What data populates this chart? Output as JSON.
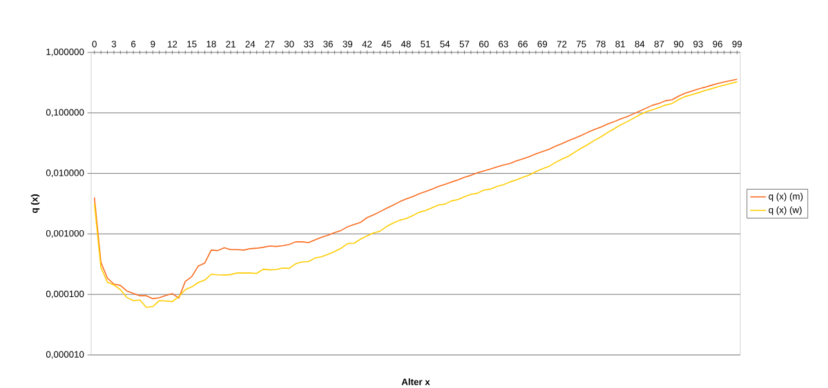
{
  "chart_data": {
    "type": "line",
    "xlabel": "Alter x",
    "ylabel": "q (x)",
    "log": "y",
    "grid": "y",
    "legend": "right",
    "marker": "none",
    "line_style": "solid",
    "x": [
      0,
      1,
      2,
      3,
      4,
      5,
      6,
      7,
      8,
      9,
      10,
      11,
      12,
      13,
      14,
      15,
      16,
      17,
      18,
      19,
      20,
      21,
      22,
      23,
      24,
      25,
      26,
      27,
      28,
      29,
      30,
      31,
      32,
      33,
      34,
      35,
      36,
      37,
      38,
      39,
      40,
      41,
      42,
      43,
      44,
      45,
      46,
      47,
      48,
      49,
      50,
      51,
      52,
      53,
      54,
      55,
      56,
      57,
      58,
      59,
      60,
      61,
      62,
      63,
      64,
      65,
      66,
      67,
      68,
      69,
      70,
      71,
      72,
      73,
      74,
      75,
      76,
      77,
      78,
      79,
      80,
      81,
      82,
      83,
      84,
      85,
      86,
      87,
      88,
      89,
      90,
      91,
      92,
      93,
      94,
      95,
      96,
      97,
      98,
      99
    ],
    "xlim": [
      -0.5,
      99.5
    ],
    "xticks": [
      0,
      {
        "value": 1,
        "label": null
      },
      {
        "value": 2,
        "label": null
      },
      3,
      {
        "value": 4,
        "label": null
      },
      {
        "value": 5,
        "label": null
      },
      6,
      {
        "value": 7,
        "label": null
      },
      {
        "value": 8,
        "label": null
      },
      9,
      {
        "value": 10,
        "label": null
      },
      {
        "value": 11,
        "label": null
      },
      12,
      {
        "value": 13,
        "label": null
      },
      {
        "value": 14,
        "label": null
      },
      15,
      {
        "value": 16,
        "label": null
      },
      {
        "value": 17,
        "label": null
      },
      18,
      {
        "value": 19,
        "label": null
      },
      {
        "value": 20,
        "label": null
      },
      21,
      {
        "value": 22,
        "label": null
      },
      {
        "value": 23,
        "label": null
      },
      24,
      {
        "value": 25,
        "label": null
      },
      {
        "value": 26,
        "label": null
      },
      27,
      {
        "value": 28,
        "label": null
      },
      {
        "value": 29,
        "label": null
      },
      30,
      {
        "value": 31,
        "label": null
      },
      {
        "value": 32,
        "label": null
      },
      33,
      {
        "value": 34,
        "label": null
      },
      {
        "value": 35,
        "label": null
      },
      36,
      {
        "value": 37,
        "label": null
      },
      {
        "value": 38,
        "label": null
      },
      39,
      {
        "value": 40,
        "label": null
      },
      {
        "value": 41,
        "label": null
      },
      42,
      {
        "value": 43,
        "label": null
      },
      {
        "value": 44,
        "label": null
      },
      45,
      {
        "value": 46,
        "label": null
      },
      {
        "value": 47,
        "label": null
      },
      48,
      {
        "value": 49,
        "label": null
      },
      {
        "value": 50,
        "label": null
      },
      51,
      {
        "value": 52,
        "label": null
      },
      {
        "value": 53,
        "label": null
      },
      54,
      {
        "value": 55,
        "label": null
      },
      {
        "value": 56,
        "label": null
      },
      57,
      {
        "value": 58,
        "label": null
      },
      {
        "value": 59,
        "label": null
      },
      60,
      {
        "value": 61,
        "label": null
      },
      {
        "value": 62,
        "label": null
      },
      63,
      {
        "value": 64,
        "label": null
      },
      {
        "value": 65,
        "label": null
      },
      66,
      {
        "value": 67,
        "label": null
      },
      {
        "value": 68,
        "label": null
      },
      69,
      {
        "value": 70,
        "label": null
      },
      {
        "value": 71,
        "label": null
      },
      72,
      {
        "value": 73,
        "label": null
      },
      {
        "value": 74,
        "label": null
      },
      75,
      {
        "value": 76,
        "label": null
      },
      {
        "value": 77,
        "label": null
      },
      78,
      {
        "value": 79,
        "label": null
      },
      {
        "value": 80,
        "label": null
      },
      81,
      {
        "value": 82,
        "label": null
      },
      {
        "value": 83,
        "label": null
      },
      84,
      {
        "value": 85,
        "label": null
      },
      {
        "value": 86,
        "label": null
      },
      87,
      {
        "value": 88,
        "label": null
      },
      {
        "value": 89,
        "label": null
      },
      90,
      {
        "value": 91,
        "label": null
      },
      {
        "value": 92,
        "label": null
      },
      93,
      {
        "value": 94,
        "label": null
      },
      {
        "value": 95,
        "label": null
      },
      96,
      {
        "value": 97,
        "label": null
      },
      {
        "value": 98,
        "label": null
      },
      99
    ],
    "ylim": [
      1e-05,
      1
    ],
    "yticks": [
      {
        "value": 1e-05,
        "label": "0,000010"
      },
      {
        "value": 0.0001,
        "label": "0,000100"
      },
      {
        "value": 0.001,
        "label": "0,001000"
      },
      {
        "value": 0.01,
        "label": "0,010000"
      },
      {
        "value": 0.1,
        "label": "0,100000"
      },
      {
        "value": 1,
        "label": "1,000000"
      }
    ],
    "series": [
      {
        "name": "q (x) (m)",
        "color": "#fa6b1e",
        "values": [
          0.004,
          0.00034,
          0.000186,
          0.000148,
          0.000141,
          0.000114,
          0.000104,
          9.5e-05,
          9.5e-05,
          8.5e-05,
          8.8e-05,
          9.6e-05,
          0.000103,
          8.7e-05,
          0.000164,
          0.000197,
          0.000295,
          0.00033,
          0.00054,
          0.00053,
          0.00059,
          0.00055,
          0.00055,
          0.00054,
          0.00057,
          0.00058,
          0.0006,
          0.00063,
          0.00062,
          0.00064,
          0.00067,
          0.00074,
          0.00074,
          0.00072,
          0.0008,
          0.00088,
          0.00095,
          0.00105,
          0.00114,
          0.00131,
          0.00143,
          0.00155,
          0.00186,
          0.00207,
          0.00233,
          0.00265,
          0.00298,
          0.00339,
          0.00377,
          0.00411,
          0.0046,
          0.005,
          0.0055,
          0.0061,
          0.0066,
          0.0072,
          0.0078,
          0.0086,
          0.0093,
          0.0102,
          0.011,
          0.0118,
          0.0128,
          0.0137,
          0.0146,
          0.0161,
          0.0174,
          0.0189,
          0.021,
          0.0229,
          0.025,
          0.028,
          0.031,
          0.0347,
          0.0383,
          0.0425,
          0.0476,
          0.0529,
          0.058,
          0.065,
          0.071,
          0.079,
          0.086,
          0.096,
          0.107,
          0.12,
          0.134,
          0.144,
          0.159,
          0.165,
          0.189,
          0.212,
          0.229,
          0.248,
          0.265,
          0.285,
          0.306,
          0.324,
          0.342,
          0.36
        ]
      },
      {
        "name": "q (x) (w)",
        "color": "#ffcc00",
        "values": [
          0.0032,
          0.00028,
          0.000159,
          0.000143,
          0.00012,
          8.9e-05,
          7.9e-05,
          8.1e-05,
          6.1e-05,
          6.3e-05,
          7.9e-05,
          7.8e-05,
          7.6e-05,
          9.2e-05,
          0.00012,
          0.000133,
          0.000157,
          0.000173,
          0.000215,
          0.000211,
          0.000209,
          0.000213,
          0.000227,
          0.000226,
          0.000226,
          0.000222,
          0.000261,
          0.000254,
          0.000258,
          0.000272,
          0.00027,
          0.00032,
          0.000345,
          0.00035,
          0.0004,
          0.00042,
          0.00046,
          0.00051,
          0.00058,
          0.00069,
          0.0007,
          0.00082,
          0.00093,
          0.00104,
          0.00111,
          0.00132,
          0.00151,
          0.00168,
          0.00179,
          0.002,
          0.00227,
          0.00243,
          0.0027,
          0.003,
          0.00311,
          0.0035,
          0.0037,
          0.0041,
          0.0045,
          0.0047,
          0.0053,
          0.0055,
          0.0061,
          0.0065,
          0.0072,
          0.0078,
          0.0086,
          0.0094,
          0.0107,
          0.0119,
          0.013,
          0.0151,
          0.0172,
          0.0192,
          0.0224,
          0.0261,
          0.03,
          0.035,
          0.04,
          0.047,
          0.054,
          0.063,
          0.071,
          0.081,
          0.093,
          0.104,
          0.113,
          0.123,
          0.135,
          0.143,
          0.166,
          0.186,
          0.199,
          0.215,
          0.233,
          0.25,
          0.269,
          0.288,
          0.306,
          0.327
        ]
      }
    ]
  }
}
